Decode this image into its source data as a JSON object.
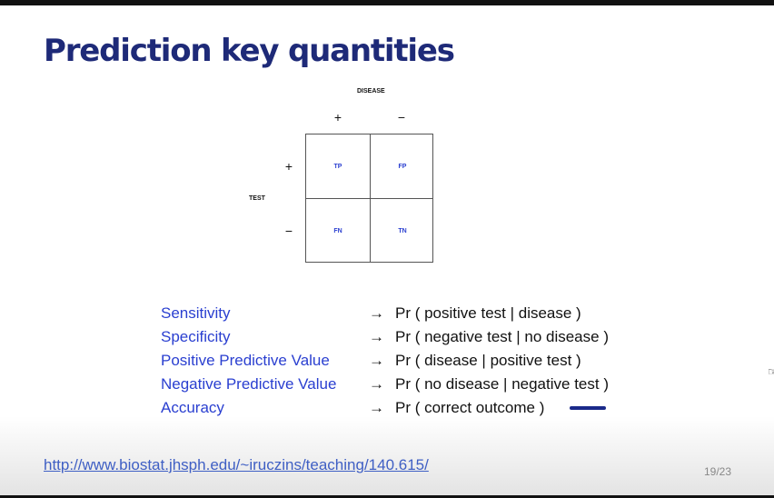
{
  "slide": {
    "title": "Prediction key quantities",
    "page": "19/23",
    "url": "http://www.biostat.jhsph.edu/~iruczins/teaching/140.615/"
  },
  "matrix": {
    "disease_label": "DISEASE",
    "test_label": "TEST",
    "col_plus": "+",
    "col_minus": "−",
    "row_plus": "+",
    "row_minus": "−",
    "cells": {
      "tp": "TP",
      "fp": "FP",
      "fn": "FN",
      "tn": "TN"
    }
  },
  "definitions": [
    {
      "term": "Sensitivity",
      "arrow": "→",
      "def": "Pr ( positive test | disease )"
    },
    {
      "term": "Specificity",
      "arrow": "→",
      "def": "Pr ( negative test | no disease )"
    },
    {
      "term": "Positive Predictive Value",
      "arrow": "→",
      "def": "Pr ( disease | positive test )"
    },
    {
      "term": "Negative Predictive Value",
      "arrow": "→",
      "def": "Pr ( no disease | negative test )"
    },
    {
      "term": "Accuracy",
      "arrow": "→",
      "def": "Pr ( correct outcome )"
    }
  ],
  "colors": {
    "title": "#1e2a78",
    "term": "#2a3fd0",
    "link": "#3f5fc4",
    "annotation": "#1a2a8a"
  }
}
